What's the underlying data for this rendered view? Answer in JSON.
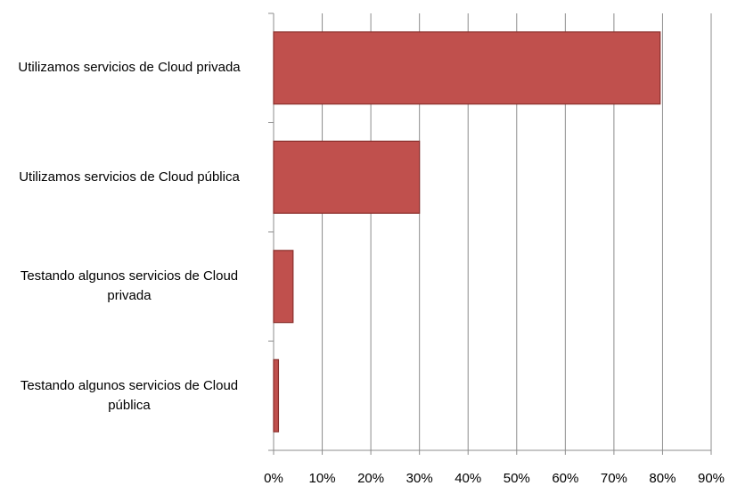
{
  "chart_data": {
    "type": "bar",
    "orientation": "horizontal",
    "categories": [
      "Utilizamos servicios de Cloud privada",
      "Utilizamos servicios de Cloud pública",
      "Testando algunos servicios de Cloud privada",
      "Testando algunos servicios de Cloud pública"
    ],
    "values": [
      79.5,
      30,
      4,
      1
    ],
    "color": "#c0504d",
    "xlim": [
      0,
      90
    ],
    "xticks": [
      {
        "value": 0,
        "label": "0%"
      },
      {
        "value": 10,
        "label": "10%"
      },
      {
        "value": 20,
        "label": "20%"
      },
      {
        "value": 30,
        "label": "30%"
      },
      {
        "value": 40,
        "label": "40%"
      },
      {
        "value": 50,
        "label": "50%"
      },
      {
        "value": 60,
        "label": "60%"
      },
      {
        "value": 70,
        "label": "70%"
      },
      {
        "value": 80,
        "label": "80%"
      },
      {
        "value": 90,
        "label": "90%"
      }
    ],
    "grid": true
  }
}
